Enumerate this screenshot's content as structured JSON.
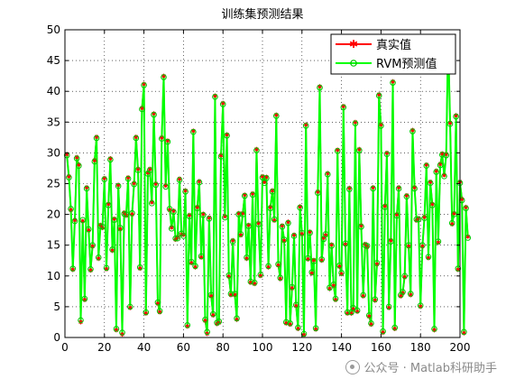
{
  "chart_data": {
    "type": "line",
    "title": "训练集预测结果",
    "xlabel": "",
    "ylabel": "",
    "xlim": [
      0,
      200
    ],
    "ylim": [
      0,
      50
    ],
    "xticks": [
      0,
      20,
      40,
      60,
      80,
      100,
      120,
      140,
      160,
      180,
      200
    ],
    "yticks": [
      0,
      5,
      10,
      15,
      20,
      25,
      30,
      35,
      40,
      45,
      50
    ],
    "grid": true,
    "legend_position": "top-right",
    "series": [
      {
        "name": "真实值",
        "color": "#ff0000",
        "marker": "star",
        "values": [
          29.8,
          26.2,
          20.7,
          11.0,
          19.1,
          29.3,
          28.1,
          2.5,
          18.9,
          6.1,
          24.4,
          17.4,
          10.9,
          14.8,
          28.8,
          32.6,
          12.8,
          18.3,
          17.8,
          25.9,
          11.1,
          21.7,
          29.1,
          14.1,
          19.3,
          1.2,
          24.8,
          17.6,
          0.5,
          20.3,
          19.8,
          26.0,
          4.8,
          20.0,
          25.1,
          32.6,
          27.4,
          11.2,
          37.3,
          41.2,
          3.9,
          26.8,
          27.4,
          22.0,
          36.4,
          25.0,
          5.5,
          4.1,
          32.5,
          42.5,
          24.7,
          32.0,
          20.7,
          17.9,
          20.6,
          15.9,
          16.3,
          25.8,
          16.7,
          16.7,
          23.9,
          1.8,
          19.9,
          12.1,
          33.6,
          11.4,
          21.2,
          25.4,
          13.0,
          20.1,
          2.7,
          0.6,
          19.5,
          6.7,
          3.6,
          39.3,
          2.2,
          2.4,
          29.6,
          38.1,
          19.7,
          33.0,
          9.9,
          6.9,
          15.8,
          6.9,
          2.9,
          20.2,
          16.6,
          20.2,
          23.2,
          12.8,
          18.3,
          8.9,
          23.4,
          8.7,
          30.6,
          18.6,
          10.0,
          26.2,
          25.3,
          26.1,
          11.4,
          21.2,
          23.9,
          19.0,
          36.2,
          11.7,
          9.5,
          18.2,
          15.7,
          2.3,
          18.8,
          2.1,
          8.0,
          16.7,
          5.1,
          1.4,
          21.3,
          16.8,
          0.4,
          34.6,
          12.7,
          17.2,
          10.4,
          12.6,
          1.3,
          23.7,
          40.8,
          12.5,
          16.2,
          16.6,
          26.7,
          7.9,
          15.1,
          8.4,
          6.1,
          30.5,
          11.5,
          10.3,
          37.6,
          15.1,
          3.9,
          24.3,
          3.9,
          4.6,
          35.0,
          4.2,
          30.6,
          18.2,
          6.7,
          15.2,
          14.7,
          3.4,
          2.1,
          24.4,
          6.0,
          11.9,
          39.5,
          34.6,
          0.8,
          21.4,
          30.0,
          4.8,
          15.8,
          41.6,
          1.4,
          20.0,
          24.4,
          6.7,
          7.2,
          9.8,
          23.1,
          14.8,
          6.9,
          33.7,
          24.4,
          19.0,
          19.4,
          5.0,
          14.8,
          19.6,
          28.1,
          12.9,
          25.3,
          21.7,
          1.2,
          27.1,
          15.4,
          28.2,
          29.9,
          26.4,
          29.8,
          48.7,
          34.9,
          18.4,
          20.2,
          36.1,
          11.0,
          25.3,
          22.5,
          0.7,
          21.2,
          16.4
        ]
      },
      {
        "name": "RVM预测值",
        "color": "#00ff00",
        "marker": "circle",
        "values": [
          29.6,
          26.0,
          20.9,
          11.2,
          18.9,
          29.1,
          27.9,
          2.8,
          19.1,
          6.3,
          24.2,
          17.6,
          11.1,
          15.0,
          28.6,
          32.4,
          13.0,
          18.1,
          18.0,
          25.7,
          11.3,
          21.5,
          28.9,
          14.3,
          19.1,
          1.4,
          24.6,
          17.8,
          0.8,
          20.1,
          20.0,
          25.8,
          5.0,
          20.2,
          24.9,
          32.4,
          27.2,
          11.4,
          37.1,
          41.0,
          4.1,
          26.6,
          27.2,
          21.8,
          36.2,
          24.8,
          5.7,
          4.3,
          32.3,
          42.3,
          24.5,
          31.8,
          20.9,
          17.7,
          20.4,
          16.1,
          16.1,
          25.6,
          16.9,
          16.5,
          23.7,
          2.0,
          19.7,
          12.3,
          33.4,
          11.6,
          21.0,
          25.2,
          13.2,
          19.9,
          2.9,
          0.9,
          19.3,
          6.9,
          3.8,
          39.1,
          2.4,
          2.6,
          29.4,
          37.9,
          19.5,
          32.8,
          10.1,
          7.1,
          15.6,
          7.1,
          3.1,
          20.0,
          16.8,
          20.0,
          23.0,
          13.0,
          18.1,
          9.1,
          23.2,
          8.9,
          30.4,
          18.4,
          10.2,
          26.0,
          25.1,
          25.9,
          11.6,
          21.0,
          23.7,
          19.2,
          36.0,
          11.9,
          9.7,
          18.0,
          15.9,
          2.5,
          18.6,
          2.3,
          8.2,
          16.5,
          5.3,
          1.6,
          21.1,
          17.0,
          0.6,
          34.4,
          12.9,
          17.0,
          10.6,
          12.4,
          1.5,
          23.5,
          40.6,
          12.7,
          16.0,
          16.8,
          26.5,
          8.1,
          14.9,
          8.6,
          6.3,
          30.3,
          11.7,
          10.5,
          37.4,
          15.3,
          4.1,
          24.1,
          4.1,
          4.8,
          34.8,
          4.4,
          30.4,
          18.0,
          6.9,
          15.0,
          14.9,
          3.6,
          2.3,
          24.2,
          6.2,
          12.1,
          39.3,
          34.4,
          1.0,
          21.2,
          29.8,
          5.0,
          15.6,
          41.4,
          1.6,
          19.8,
          24.2,
          6.9,
          7.4,
          10.0,
          22.9,
          15.0,
          7.1,
          33.5,
          24.2,
          19.2,
          19.2,
          5.2,
          15.0,
          19.4,
          27.9,
          13.1,
          25.1,
          21.5,
          1.4,
          26.9,
          15.6,
          28.0,
          29.7,
          26.2,
          29.6,
          48.5,
          34.7,
          18.6,
          20.0,
          35.9,
          11.2,
          25.1,
          22.3,
          0.9,
          21.0,
          16.2
        ]
      }
    ]
  },
  "watermark": {
    "text": "公众号 · Matlab科研助手"
  }
}
